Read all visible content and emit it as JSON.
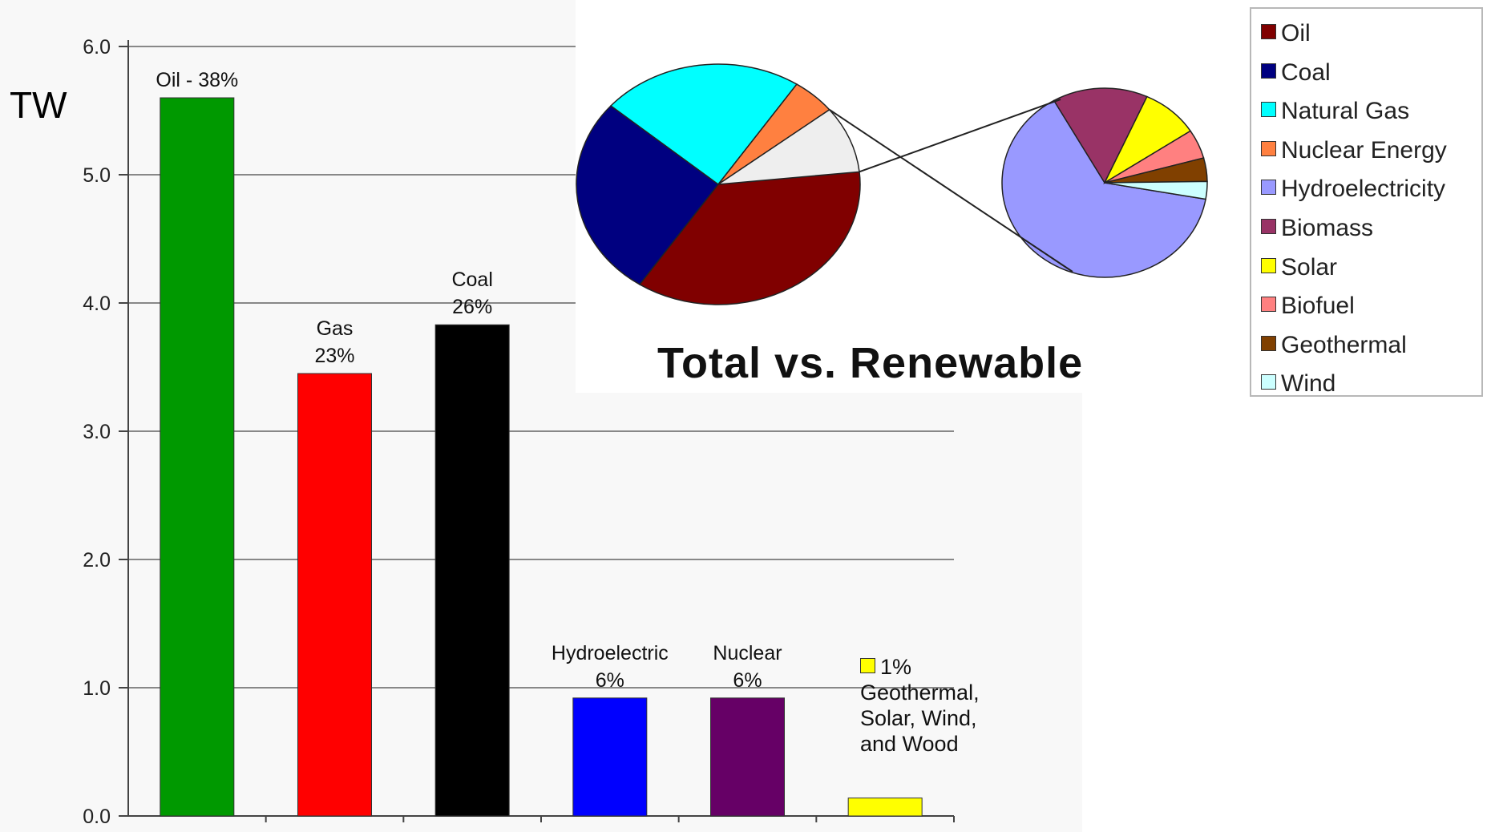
{
  "chart_data": [
    {
      "type": "bar",
      "ylabel": "TW",
      "ylim": [
        0,
        6
      ],
      "yticks": [
        "0.0",
        "1.0",
        "2.0",
        "3.0",
        "4.0",
        "5.0",
        "6.0"
      ],
      "grid": true,
      "categories": [
        "Oil",
        "Gas",
        "Coal",
        "Hydroelectric",
        "Nuclear",
        "Geothermal, Solar, Wind, and Wood"
      ],
      "values": [
        5.6,
        3.45,
        3.83,
        0.92,
        0.92,
        0.14
      ],
      "colors": [
        "#009900",
        "#ff0000",
        "#000000",
        "#0000ff",
        "#660066",
        "#ffff00"
      ],
      "data_labels": [
        [
          "Oil - 38%"
        ],
        [
          "Gas",
          "23%"
        ],
        [
          "Coal",
          "26%"
        ],
        [
          "Hydroelectric",
          "6%"
        ],
        [
          "Nuclear",
          "6%"
        ],
        []
      ],
      "note": [
        "1%",
        "Geothermal,",
        "Solar, Wind,",
        "and Wood"
      ]
    },
    {
      "type": "pie",
      "title": "Total vs. Renewable",
      "legend_position": "right",
      "total_slices": [
        {
          "name": "Oil",
          "value": 36,
          "color": "#800000"
        },
        {
          "name": "Coal",
          "value": 27,
          "color": "#000080"
        },
        {
          "name": "Natural Gas",
          "value": 23,
          "color": "#00ffff"
        },
        {
          "name": "Nuclear Energy",
          "value": 5,
          "color": "#ff8040"
        },
        {
          "name": "Renewable",
          "value": 9,
          "color": "#eeeeee"
        }
      ],
      "renewable_slices": [
        {
          "name": "Hydroelectricity",
          "value": 64,
          "color": "#9999ff"
        },
        {
          "name": "Biomass",
          "value": 15,
          "color": "#993366"
        },
        {
          "name": "Solar",
          "value": 9,
          "color": "#ffff00"
        },
        {
          "name": "Biofuel",
          "value": 5,
          "color": "#ff8080"
        },
        {
          "name": "Geothermal",
          "value": 4,
          "color": "#804000"
        },
        {
          "name": "Wind",
          "value": 3,
          "color": "#ccffff"
        }
      ],
      "legend": [
        {
          "name": "Oil",
          "color": "#800000"
        },
        {
          "name": "Coal",
          "color": "#000080"
        },
        {
          "name": "Natural Gas",
          "color": "#00ffff"
        },
        {
          "name": "Nuclear Energy",
          "color": "#ff8040"
        },
        {
          "name": "Hydroelectricity",
          "color": "#9999ff"
        },
        {
          "name": "Biomass",
          "color": "#993366"
        },
        {
          "name": "Solar",
          "color": "#ffff00"
        },
        {
          "name": "Biofuel",
          "color": "#ff8080"
        },
        {
          "name": "Geothermal",
          "color": "#804000"
        },
        {
          "name": "Wind",
          "color": "#ccffff"
        }
      ]
    }
  ]
}
